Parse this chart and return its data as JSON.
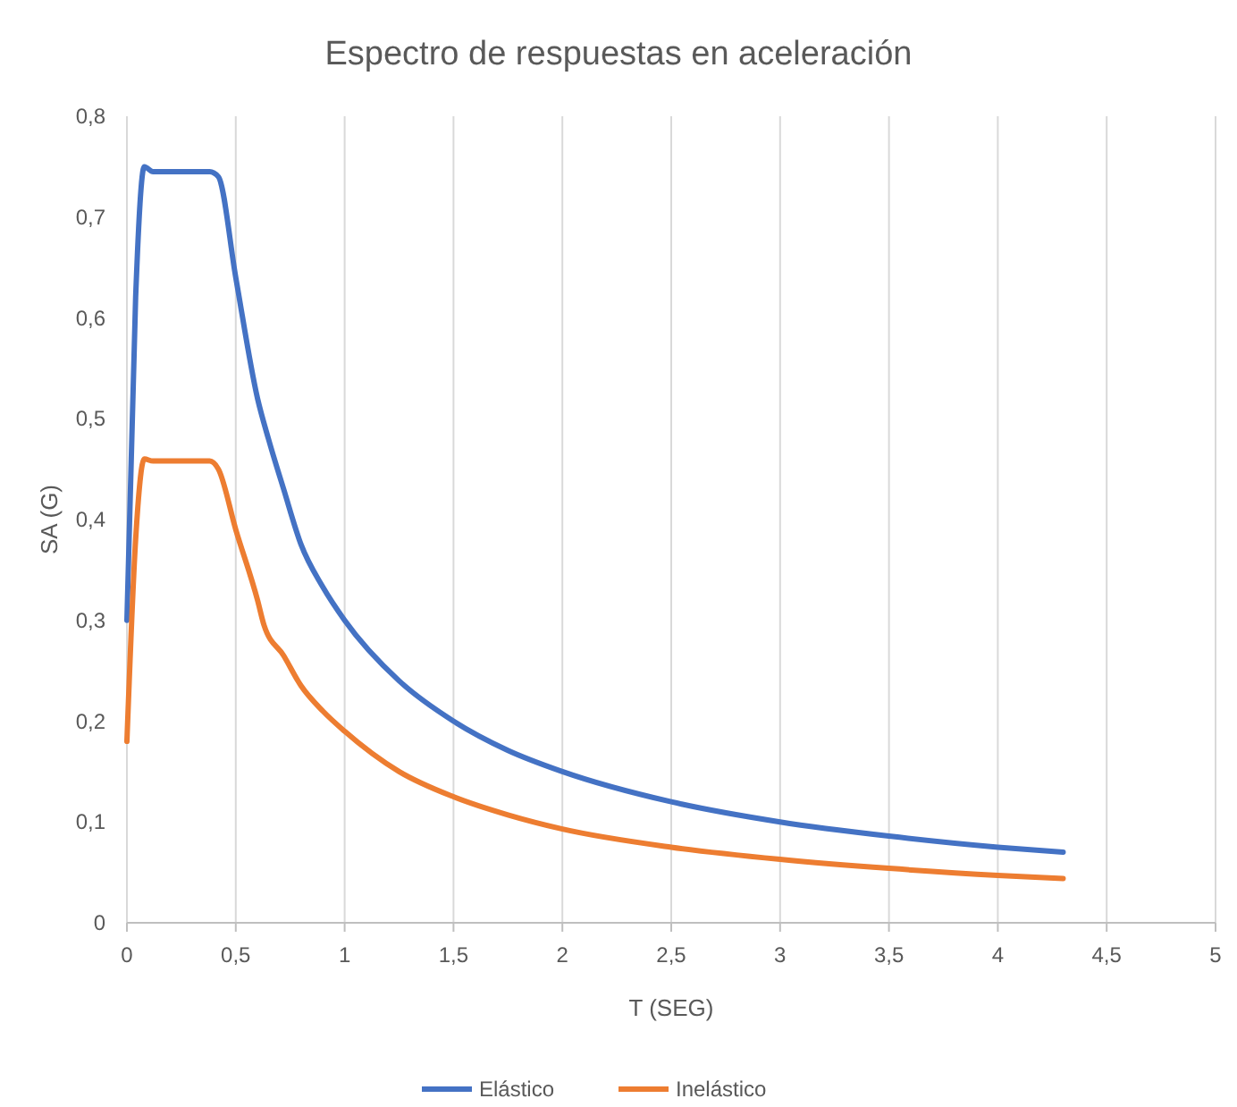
{
  "chart_data": {
    "type": "line",
    "title": "Espectro de respuestas en aceleración",
    "xlabel": "T (SEG)",
    "ylabel": "SA (G)",
    "xlim": [
      0,
      5
    ],
    "xticks": [
      0,
      {
        "value": 0.5,
        "label": "0,5"
      },
      1,
      {
        "value": 1.5,
        "label": "1,5"
      },
      2,
      {
        "value": 2.5,
        "label": "2,5"
      },
      3,
      {
        "value": 3.5,
        "label": "3,5"
      },
      4,
      {
        "value": 4.5,
        "label": "4,5"
      },
      5
    ],
    "ylim": [
      0,
      0.8
    ],
    "yticks": [
      0,
      {
        "value": 0.1,
        "label": "0,1"
      },
      {
        "value": 0.2,
        "label": "0,2"
      },
      {
        "value": 0.3,
        "label": "0,3"
      },
      {
        "value": 0.4,
        "label": "0,4"
      },
      {
        "value": 0.5,
        "label": "0,5"
      },
      {
        "value": 0.6,
        "label": "0,6"
      },
      {
        "value": 0.7,
        "label": "0,7"
      },
      {
        "value": 0.8,
        "label": "0,8"
      }
    ],
    "grid": "x",
    "legend": "bottom",
    "marker": "none",
    "line_style": "solid",
    "series": [
      {
        "name": "Elástico",
        "color": "#4472c4",
        "x": [
          0,
          0.04,
          0.08,
          0.12,
          0.2,
          0.3,
          0.38,
          0.42,
          0.5,
          0.6,
          0.65,
          0.72,
          0.8,
          0.9,
          1,
          1.25,
          1.5,
          1.75,
          2,
          2.5,
          3,
          3.5,
          4,
          4.3
        ],
        "values": [
          0.3,
          0.62,
          0.75,
          0.745,
          0.745,
          0.745,
          0.745,
          0.74,
          0.64,
          0.52,
          0.48,
          0.43,
          0.375,
          0.333,
          0.3,
          0.24,
          0.2,
          0.171,
          0.15,
          0.12,
          0.1,
          0.086,
          0.075,
          0.07
        ]
      },
      {
        "name": "Inelástico",
        "color": "#ed7d31",
        "x": [
          0,
          0.04,
          0.08,
          0.12,
          0.2,
          0.3,
          0.38,
          0.42,
          0.5,
          0.6,
          0.63,
          0.72,
          0.8,
          0.9,
          1,
          1.25,
          1.5,
          1.75,
          2,
          2.5,
          3,
          3.5,
          4,
          4.3
        ],
        "values": [
          0.18,
          0.38,
          0.46,
          0.458,
          0.458,
          0.458,
          0.458,
          0.45,
          0.39,
          0.32,
          0.295,
          0.265,
          0.235,
          0.21,
          0.19,
          0.15,
          0.125,
          0.107,
          0.093,
          0.075,
          0.063,
          0.054,
          0.047,
          0.044
        ]
      }
    ]
  }
}
